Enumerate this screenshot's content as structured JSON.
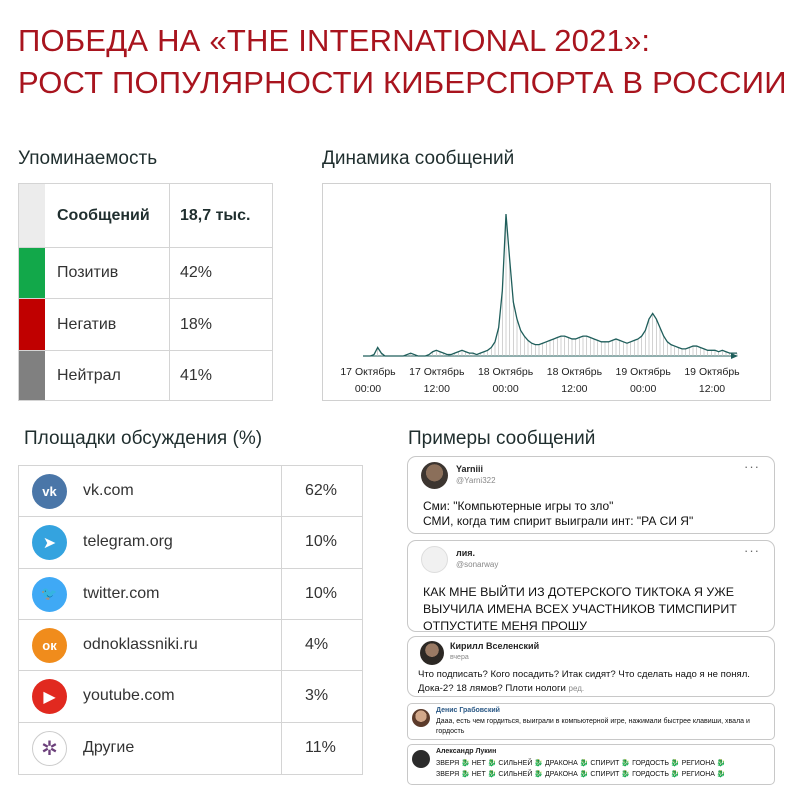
{
  "title": {
    "line1": "ПОБЕДА НА «THE INTERNATIONAL 2021»:",
    "line2": "РОСТ ПОПУЛЯРНОСТИ КИБЕРСПОРТА В РОССИИ"
  },
  "mentions": {
    "heading": "Упоминаемость",
    "rows": [
      {
        "label": "Сообщений",
        "value": "18,7 тыс.",
        "color": "#ececec"
      },
      {
        "label": "Позитив",
        "value": "42%",
        "color": "#12a84a"
      },
      {
        "label": "Негатив",
        "value": "18%",
        "color": "#c00000"
      },
      {
        "label": "Нейтрал",
        "value": "41%",
        "color": "#808080"
      }
    ]
  },
  "chart_data": {
    "type": "area",
    "title": "Динамика сообщений",
    "x_ticks": [
      {
        "line1": "17 Октябрь",
        "line2": "00:00"
      },
      {
        "line1": "17 Октябрь",
        "line2": "12:00"
      },
      {
        "line1": "18 Октябрь",
        "line2": "00:00"
      },
      {
        "line1": "18 Октябрь",
        "line2": "12:00"
      },
      {
        "line1": "19 Октябрь",
        "line2": "00:00"
      },
      {
        "line1": "19 Октябрь",
        "line2": "12:00"
      }
    ],
    "series": [
      {
        "values": [
          0,
          0,
          0,
          1,
          6,
          2,
          0,
          0,
          0,
          0,
          0,
          0,
          1,
          2,
          1,
          0,
          0,
          0,
          1,
          3,
          4,
          3,
          2,
          1,
          1,
          2,
          3,
          4,
          3,
          2,
          2,
          1,
          2,
          3,
          4,
          6,
          10,
          20,
          46,
          100,
          68,
          38,
          26,
          18,
          14,
          11,
          9,
          8,
          8,
          9,
          10,
          11,
          12,
          13,
          14,
          14,
          13,
          12,
          12,
          13,
          14,
          14,
          13,
          12,
          11,
          10,
          10,
          10,
          11,
          12,
          11,
          10,
          9,
          10,
          11,
          12,
          14,
          18,
          26,
          30,
          26,
          20,
          14,
          10,
          8,
          7,
          6,
          5,
          5,
          6,
          7,
          7,
          6,
          5,
          4,
          4,
          4,
          3,
          4,
          3,
          2,
          2,
          2
        ]
      }
    ],
    "ylim": [
      0,
      100
    ],
    "color": "#1f5e5b",
    "fill_color": "#bcbcbc"
  },
  "platforms": {
    "heading": "Площадки обсуждения (%)",
    "rows": [
      {
        "name": "vk.com",
        "pct": "62%",
        "icon": "vk-icon",
        "color": "#4a76a8",
        "glyph": "vk"
      },
      {
        "name": "telegram.org",
        "pct": "10%",
        "icon": "telegram-icon",
        "color": "#34a3df",
        "glyph": "➤"
      },
      {
        "name": "twitter.com",
        "pct": "10%",
        "icon": "twitter-icon",
        "color": "#3fa9f5",
        "glyph": "🐦"
      },
      {
        "name": "odnoklassniki.ru",
        "pct": "4%",
        "icon": "odnoklassniki-icon",
        "color": "#f08c1c",
        "glyph": "ок"
      },
      {
        "name": "youtube.com",
        "pct": "3%",
        "icon": "youtube-icon",
        "color": "#e1291f",
        "glyph": "▶"
      },
      {
        "name": "Другие",
        "pct": "11%",
        "icon": "network-icon",
        "color": "#ffffff",
        "glyph": "✲"
      }
    ]
  },
  "examples": {
    "heading": "Примеры сообщений",
    "messages": [
      {
        "user": "Yarniii",
        "handle": "@Yarni322",
        "text": "Сми: \"Компьютерные игры то зло\"\nСМИ, когда тим спирит выиграли инт: \"РА СИ Я\"",
        "more": "···"
      },
      {
        "user": "лия.",
        "handle": "@sonarway",
        "text": "КАК МНЕ ВЫЙТИ ИЗ ДОТЕРСКОГО ТИКТОКА Я УЖЕ ВЫУЧИЛА ИМЕНА ВСЕХ УЧАСТНИКОВ ТИМСПИРИТ ОТПУСТИТЕ МЕНЯ ПРОШУ",
        "more": "···"
      },
      {
        "user": "Кирилл Вселенский",
        "handle": "вчера",
        "text": "Что подписать? Кого посадить? Итак сидят? Что сделать надо я не понял. Дока-2? 18 лямов? Плоти нологи",
        "edited": "ред."
      },
      {
        "user": "Денис Грабовский",
        "text": "Дааа, есть чем гордиться, выиграли в компьютерной игре, нажимали быстрее клавиши, хвала и гордость"
      },
      {
        "user": "Александр Лукин",
        "line1": "ЗВЕРЯ 🐉 НЕТ 🐉 СИЛЬНЕЙ 🐉 ДРАКОНА 🐉 СПИРИТ 🐉 ГОРДОСТЬ 🐉 РЕГИОНА 🐉",
        "line2": "ЗВЕРЯ 🐉 НЕТ 🐉 СИЛЬНЕЙ 🐉 ДРАКОНА 🐉 СПИРИТ 🐉 ГОРДОСТЬ 🐉 РЕГИОНА 🐉"
      }
    ]
  }
}
